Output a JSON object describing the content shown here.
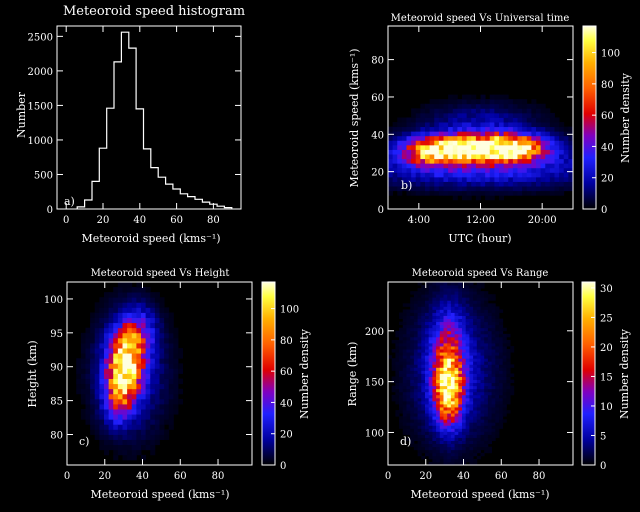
{
  "chart_data": [
    {
      "type": "bar",
      "title": "Meteoroid speed histogram",
      "xlabel": "Meteoroid speed (kms⁻¹)",
      "ylabel": "Number",
      "panel_label": "a)",
      "xlim": [
        -5,
        95
      ],
      "ylim": [
        0,
        2650
      ],
      "xticks": [
        "0",
        "20",
        "40",
        "60",
        "80"
      ],
      "xtick_values": [
        0,
        20,
        40,
        60,
        80
      ],
      "yticks": [
        "0",
        "500",
        "1000",
        "1500",
        "2000",
        "2500"
      ],
      "ytick_values": [
        0,
        500,
        1000,
        1500,
        2000,
        2500
      ],
      "bin_width": 4,
      "bin_starts": [
        6,
        10,
        14,
        18,
        22,
        26,
        30,
        34,
        38,
        42,
        46,
        50,
        54,
        58,
        62,
        66,
        70,
        74,
        78,
        82,
        86
      ],
      "values": [
        30,
        130,
        400,
        880,
        1460,
        2130,
        2560,
        2330,
        1450,
        870,
        600,
        460,
        360,
        290,
        220,
        180,
        140,
        100,
        70,
        40,
        20
      ]
    },
    {
      "type": "heatmap",
      "title": "Meteoroid speed Vs Universal time",
      "xlabel": "UTC (hour)",
      "ylabel": "Meteoroid speed (kms⁻¹)",
      "panel_label": "b)",
      "xlim": [
        0,
        24
      ],
      "ylim": [
        0,
        98
      ],
      "xticks": [
        "4:00",
        "12:00",
        "20:00"
      ],
      "xtick_values": [
        4,
        12,
        20
      ],
      "yticks": [
        "0",
        "20",
        "40",
        "60",
        "80"
      ],
      "ytick_values": [
        0,
        20,
        40,
        60,
        80
      ],
      "colorbar_label": "Number density",
      "colorbar_ticks": [
        "0",
        "20",
        "40",
        "60",
        "80",
        "100"
      ],
      "colorbar_values": [
        0,
        20,
        40,
        60,
        80,
        100
      ],
      "colorbar_max": 117,
      "blobs": [
        {
          "cx": 11.5,
          "cy": 33,
          "sx": 5.5,
          "sy": 5,
          "amp": 105
        },
        {
          "cx": 6,
          "cy": 30,
          "sx": 2.5,
          "sy": 5,
          "amp": 55
        },
        {
          "cx": 16.5,
          "cy": 32,
          "sx": 2.5,
          "sy": 5,
          "amp": 60
        },
        {
          "cx": 12,
          "cy": 22,
          "sx": 10,
          "sy": 7,
          "amp": 30
        },
        {
          "cx": 12,
          "cy": 45,
          "sx": 5,
          "sy": 8,
          "amp": 18
        }
      ]
    },
    {
      "type": "heatmap",
      "title": "Meteoroid speed Vs Height",
      "xlabel": "Meteoroid speed (kms⁻¹)",
      "ylabel": "Height (km)",
      "panel_label": "c)",
      "xlim": [
        0,
        98
      ],
      "ylim": [
        75.5,
        102.5
      ],
      "xticks": [
        "0",
        "20",
        "40",
        "60",
        "80"
      ],
      "xtick_values": [
        0,
        20,
        40,
        60,
        80
      ],
      "yticks": [
        "80",
        "85",
        "90",
        "95",
        "100"
      ],
      "ytick_values": [
        80,
        85,
        90,
        95,
        100
      ],
      "colorbar_label": "Number density",
      "colorbar_ticks": [
        "0",
        "20",
        "40",
        "60",
        "80",
        "100"
      ],
      "colorbar_values": [
        0,
        20,
        40,
        60,
        80,
        100
      ],
      "colorbar_max": 117,
      "blobs": [
        {
          "cx": 31,
          "cy": 90.5,
          "sx": 6,
          "sy": 3.2,
          "amp": 105
        },
        {
          "cx": 27,
          "cy": 85.5,
          "sx": 5,
          "sy": 2.5,
          "amp": 45
        },
        {
          "cx": 38,
          "cy": 95,
          "sx": 6,
          "sy": 2.5,
          "amp": 35
        },
        {
          "cx": 33,
          "cy": 89,
          "sx": 13,
          "sy": 6,
          "amp": 22
        }
      ]
    },
    {
      "type": "heatmap",
      "title": "Meteoroid speed Vs Range",
      "xlabel": "Meteoroid speed (kms⁻¹)",
      "ylabel": "Range (km)",
      "panel_label": "d)",
      "xlim": [
        0,
        98
      ],
      "ylim": [
        68,
        248
      ],
      "xticks": [
        "0",
        "20",
        "40",
        "60",
        "80"
      ],
      "xtick_values": [
        0,
        20,
        40,
        60,
        80
      ],
      "yticks": [
        "100",
        "150",
        "200"
      ],
      "ytick_values": [
        100,
        150,
        200
      ],
      "colorbar_label": "Number density",
      "colorbar_ticks": [
        "0",
        "5",
        "10",
        "15",
        "20",
        "25",
        "30"
      ],
      "colorbar_values": [
        0,
        5,
        10,
        15,
        20,
        25,
        30
      ],
      "colorbar_max": 31,
      "blobs": [
        {
          "cx": 32,
          "cy": 140,
          "sx": 5,
          "sy": 22,
          "amp": 22
        },
        {
          "cx": 32,
          "cy": 175,
          "sx": 6,
          "sy": 30,
          "amp": 12
        },
        {
          "cx": 34,
          "cy": 160,
          "sx": 15,
          "sy": 45,
          "amp": 6
        }
      ]
    }
  ]
}
